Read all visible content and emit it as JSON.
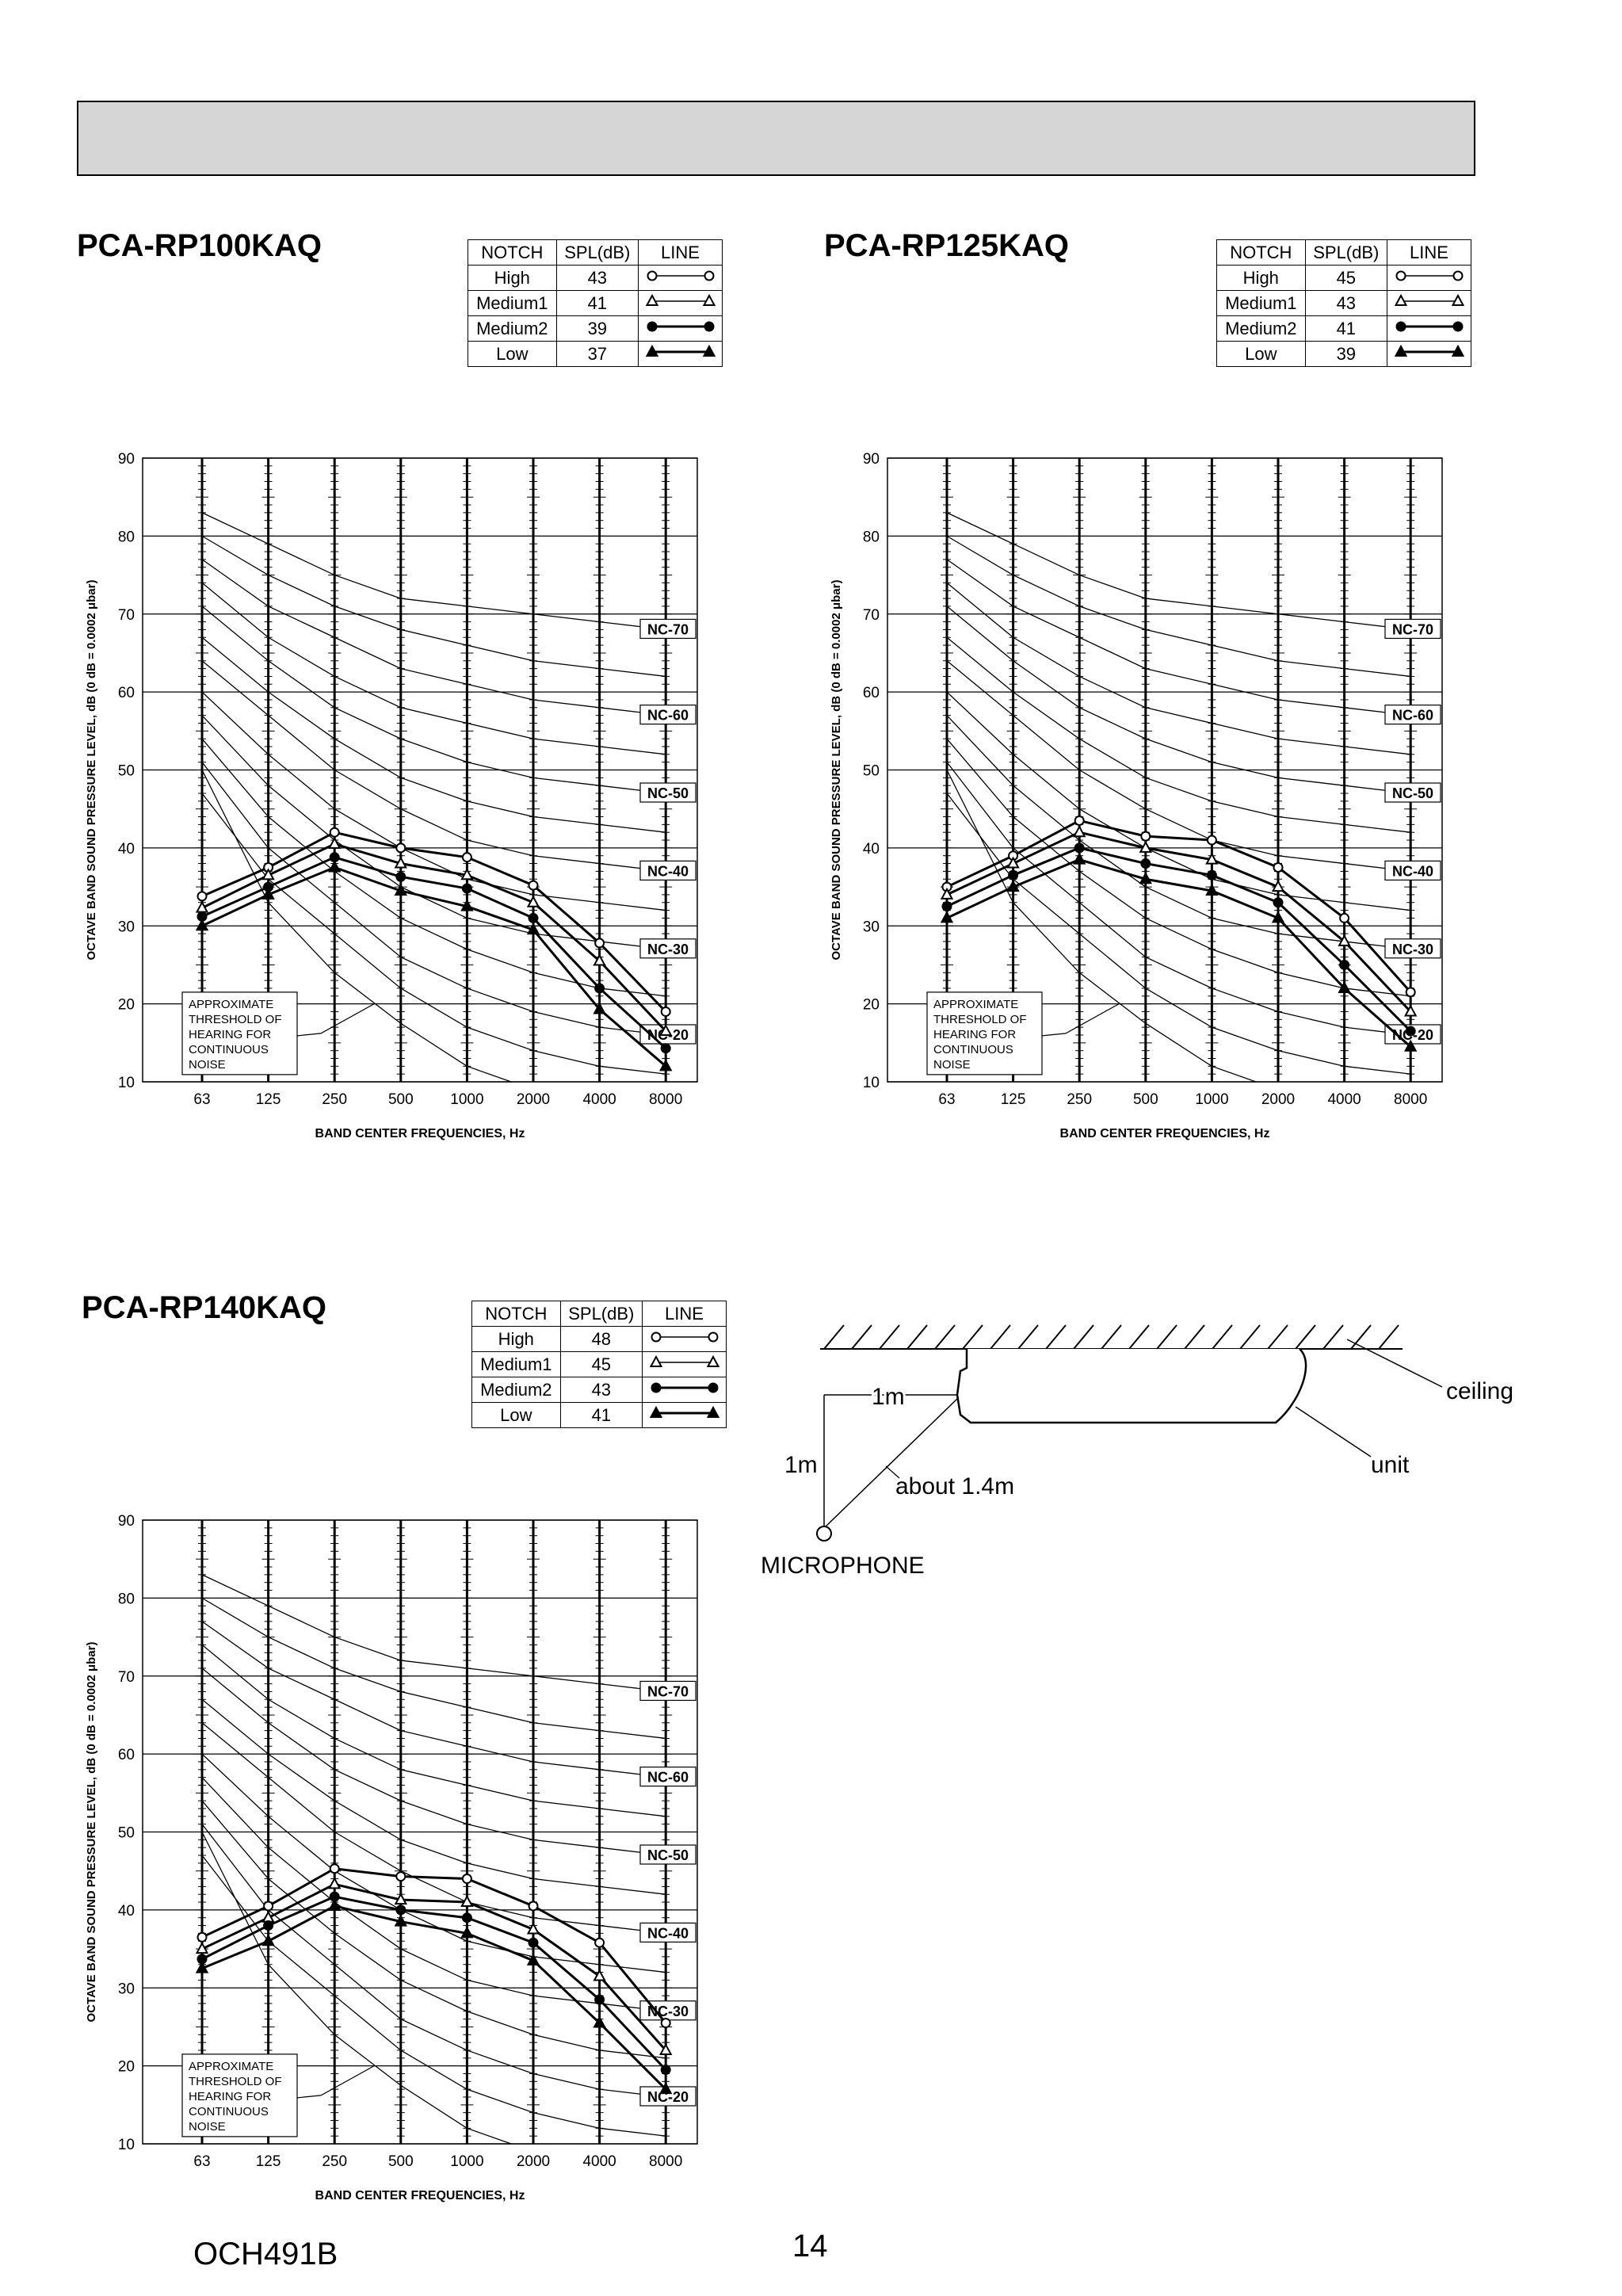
{
  "page": {
    "footer_code": "OCH491B",
    "page_number": "14"
  },
  "legend_headers": [
    "NOTCH",
    "SPL(dB)",
    "LINE"
  ],
  "chart_common": {
    "ylabel": "OCTAVE BAND SOUND PRESSURE LEVEL, dB (0 dB = 0.0002 μbar)",
    "xlabel": "BAND CENTER FREQUENCIES, Hz",
    "xticks": [
      "63",
      "125",
      "250",
      "500",
      "1000",
      "2000",
      "4000",
      "8000"
    ],
    "yticks": [
      "10",
      "20",
      "30",
      "40",
      "50",
      "60",
      "70",
      "80",
      "90"
    ],
    "ylim": [
      10,
      90
    ],
    "threshold_note": [
      "APPROXIMATE",
      "THRESHOLD OF",
      "HEARING FOR",
      "CONTINUOUS",
      "NOISE"
    ],
    "nc_labels": [
      "NC-70",
      "NC-60",
      "NC-50",
      "NC-40",
      "NC-30",
      "NC-20"
    ]
  },
  "chart_data": [
    {
      "type": "line",
      "title": "PCA-RP100KAQ",
      "categories": [
        "63",
        "125",
        "250",
        "500",
        "1000",
        "2000",
        "4000",
        "8000"
      ],
      "ylim": [
        10,
        90
      ],
      "series": [
        {
          "name": "High",
          "spl": "43",
          "marker": "open-circle",
          "values": [
            33.8,
            37.5,
            42.0,
            40.0,
            38.8,
            35.2,
            27.8,
            19.0
          ]
        },
        {
          "name": "Medium1",
          "spl": "41",
          "marker": "open-triangle",
          "values": [
            32.3,
            36.5,
            40.5,
            38.0,
            36.5,
            33.0,
            25.5,
            16.5
          ]
        },
        {
          "name": "Medium2",
          "spl": "39",
          "marker": "filled-circle",
          "values": [
            31.2,
            35.0,
            38.8,
            36.3,
            34.8,
            31.0,
            22.0,
            14.3
          ]
        },
        {
          "name": "Low",
          "spl": "37",
          "marker": "filled-triangle",
          "values": [
            30.0,
            34.0,
            37.5,
            34.5,
            32.5,
            29.5,
            19.3,
            12.0
          ]
        }
      ]
    },
    {
      "type": "line",
      "title": "PCA-RP125KAQ",
      "categories": [
        "63",
        "125",
        "250",
        "500",
        "1000",
        "2000",
        "4000",
        "8000"
      ],
      "ylim": [
        10,
        90
      ],
      "series": [
        {
          "name": "High",
          "spl": "45",
          "marker": "open-circle",
          "values": [
            35.0,
            39.0,
            43.5,
            41.5,
            41.0,
            37.5,
            31.0,
            21.5
          ]
        },
        {
          "name": "Medium1",
          "spl": "43",
          "marker": "open-triangle",
          "values": [
            34.0,
            38.0,
            42.0,
            40.0,
            38.5,
            35.0,
            28.0,
            19.0
          ]
        },
        {
          "name": "Medium2",
          "spl": "41",
          "marker": "filled-circle",
          "values": [
            32.5,
            36.5,
            40.0,
            38.0,
            36.5,
            33.0,
            25.0,
            16.5
          ]
        },
        {
          "name": "Low",
          "spl": "39",
          "marker": "filled-triangle",
          "values": [
            31.0,
            35.0,
            38.5,
            36.0,
            34.5,
            31.0,
            22.0,
            14.5
          ]
        }
      ]
    },
    {
      "type": "line",
      "title": "PCA-RP140KAQ",
      "categories": [
        "63",
        "125",
        "250",
        "500",
        "1000",
        "2000",
        "4000",
        "8000"
      ],
      "ylim": [
        10,
        90
      ],
      "series": [
        {
          "name": "High",
          "spl": "48",
          "marker": "open-circle",
          "values": [
            36.5,
            40.5,
            45.3,
            44.3,
            44.0,
            40.5,
            35.8,
            25.5
          ]
        },
        {
          "name": "Medium1",
          "spl": "45",
          "marker": "open-triangle",
          "values": [
            35.0,
            39.0,
            43.3,
            41.3,
            41.0,
            37.5,
            31.5,
            22.0
          ]
        },
        {
          "name": "Medium2",
          "spl": "43",
          "marker": "filled-circle",
          "values": [
            33.7,
            38.0,
            41.7,
            40.0,
            39.0,
            35.8,
            28.5,
            19.5
          ]
        },
        {
          "name": "Low",
          "spl": "41",
          "marker": "filled-triangle",
          "values": [
            32.5,
            36.0,
            40.5,
            38.5,
            37.0,
            33.5,
            25.5,
            17.0
          ]
        }
      ]
    }
  ],
  "diagram": {
    "ceiling_label": "ceiling",
    "unit_label": "unit",
    "dist_horizontal": "1m",
    "dist_vertical": "1m",
    "dist_diagonal": "about 1.4m",
    "microphone_label": "MICROPHONE"
  }
}
